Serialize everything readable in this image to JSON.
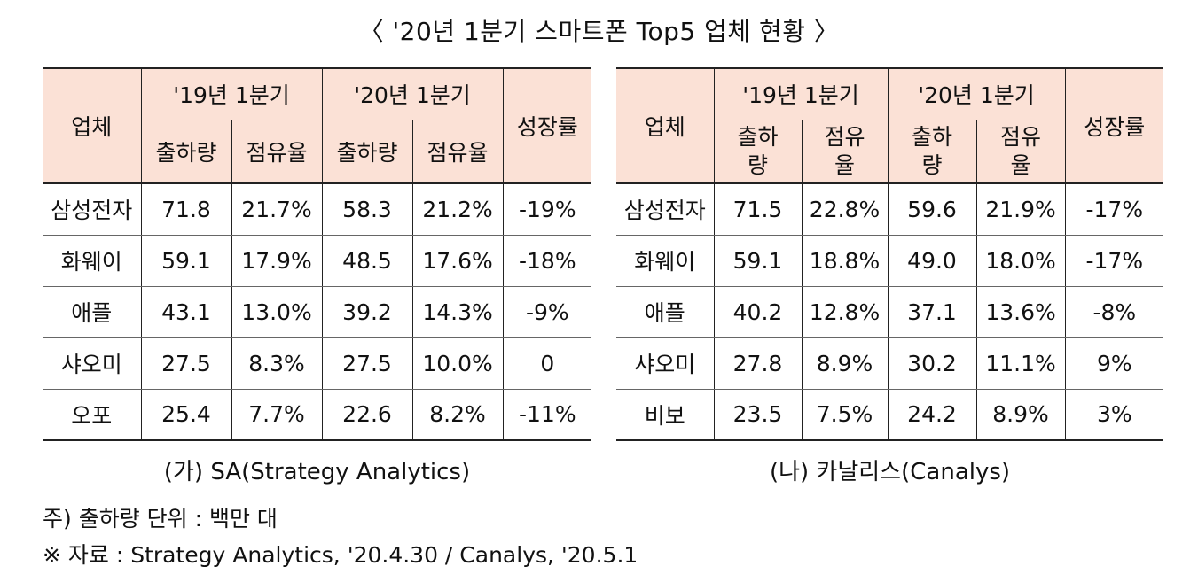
{
  "title": "〈 '20년 1분기 스마트폰 Top5 업체 현황 〉",
  "sa_table": {
    "caption": "(가) SA(Strategy Analytics)",
    "headers": {
      "vendor": "업체",
      "period_2019": "'19년 1분기",
      "period_2020": "'20년 1분기",
      "growth": "성장률",
      "shipments": "출하량",
      "share": "점유율"
    },
    "rows": [
      {
        "vendor": "삼성전자",
        "s19": "71.8",
        "p19": "21.7%",
        "s20": "58.3",
        "p20": "21.2%",
        "growth": "-19%"
      },
      {
        "vendor": "화웨이",
        "s19": "59.1",
        "p19": "17.9%",
        "s20": "48.5",
        "p20": "17.6%",
        "growth": "-18%"
      },
      {
        "vendor": "애플",
        "s19": "43.1",
        "p19": "13.0%",
        "s20": "39.2",
        "p20": "14.3%",
        "growth": "-9%"
      },
      {
        "vendor": "샤오미",
        "s19": "27.5",
        "p19": "8.3%",
        "s20": "27.5",
        "p20": "10.0%",
        "growth": "0"
      },
      {
        "vendor": "오포",
        "s19": "25.4",
        "p19": "7.7%",
        "s20": "22.6",
        "p20": "8.2%",
        "growth": "-11%"
      }
    ]
  },
  "canalys_table": {
    "caption": "(나) 카날리스(Canalys)",
    "headers": {
      "vendor": "업체",
      "period_2019": "'19년 1분기",
      "period_2020": "'20년 1분기",
      "growth": "성장률",
      "shipments_line1": "출하",
      "shipments_line2": "량",
      "share_line1": "점유",
      "share_line2": "율"
    },
    "rows": [
      {
        "vendor": "삼성전자",
        "s19": "71.5",
        "p19": "22.8%",
        "s20": "59.6",
        "p20": "21.9%",
        "growth": "-17%"
      },
      {
        "vendor": "화웨이",
        "s19": "59.1",
        "p19": "18.8%",
        "s20": "49.0",
        "p20": "18.0%",
        "growth": "-17%"
      },
      {
        "vendor": "애플",
        "s19": "40.2",
        "p19": "12.8%",
        "s20": "37.1",
        "p20": "13.6%",
        "growth": "-8%"
      },
      {
        "vendor": "샤오미",
        "s19": "27.8",
        "p19": "8.9%",
        "s20": "30.2",
        "p20": "11.1%",
        "growth": "9%"
      },
      {
        "vendor": "비보",
        "s19": "23.5",
        "p19": "7.5%",
        "s20": "24.2",
        "p20": "8.9%",
        "growth": "3%"
      }
    ]
  },
  "notes": {
    "unit": "주) 출하량 단위 : 백만 대",
    "source": "※ 자료 : Strategy Analytics, '20.4.30 / Canalys, '20.5.1"
  }
}
